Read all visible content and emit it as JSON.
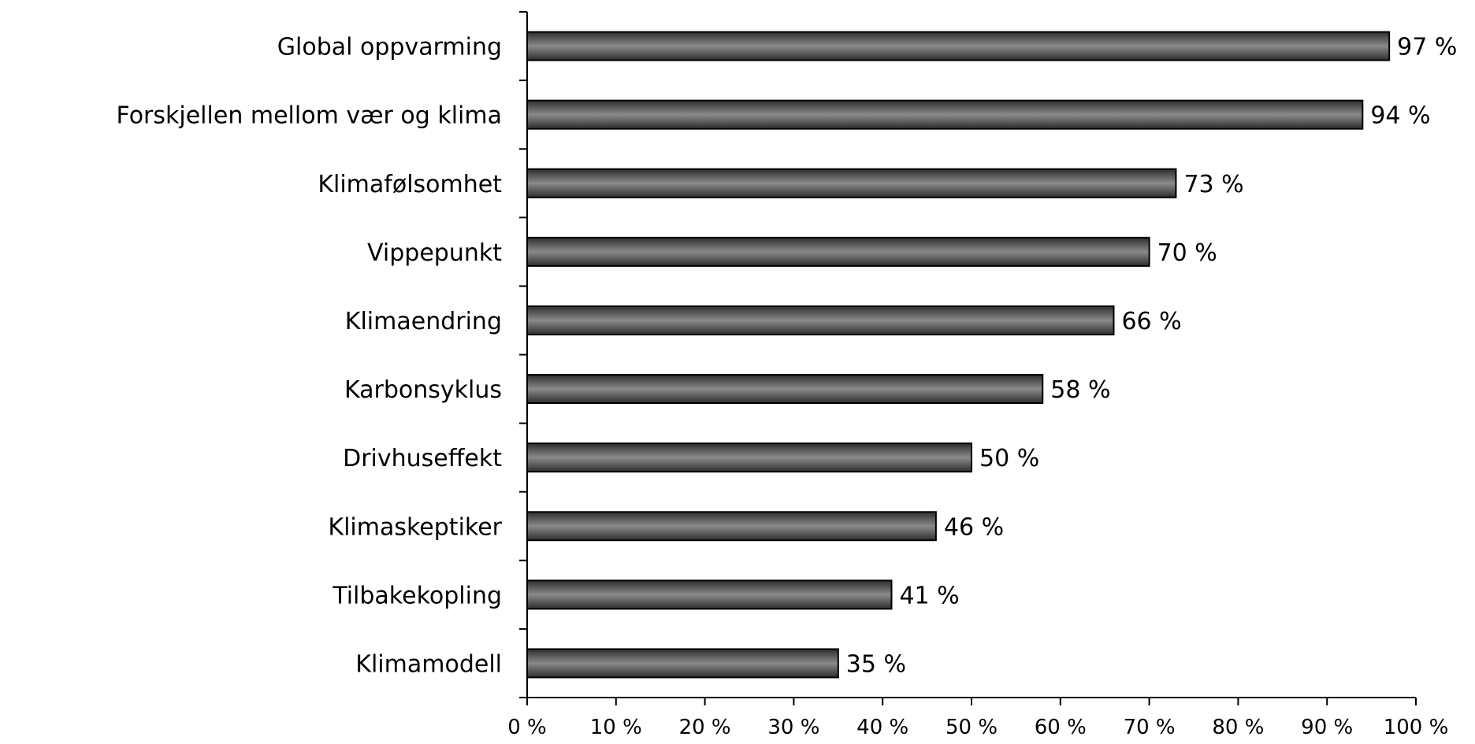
{
  "chart_data": {
    "type": "bar",
    "orientation": "horizontal",
    "title": "",
    "xlabel": "",
    "ylabel": "",
    "categories": [
      "Global oppvarming",
      "Forskjellen mellom vær og klima",
      "Klimafølsomhet",
      "Vippepunkt",
      "Klimaendring",
      "Karbonsyklus",
      "Drivhuseffekt",
      "Klimaskeptiker",
      "Tilbakekopling",
      "Klimamodell"
    ],
    "values": [
      97,
      94,
      73,
      70,
      66,
      58,
      50,
      46,
      41,
      35
    ],
    "value_labels": [
      "97 %",
      "94 %",
      "73 %",
      "70 %",
      "66 %",
      "58 %",
      "50 %",
      "46 %",
      "41 %",
      "35 %"
    ],
    "xlim": [
      0,
      100
    ],
    "x_ticks": [
      0,
      10,
      20,
      30,
      40,
      50,
      60,
      70,
      80,
      90,
      100
    ],
    "x_tick_labels": [
      "0 %",
      "10 %",
      "20 %",
      "30 %",
      "40 %",
      "50 %",
      "60 %",
      "70 %",
      "80 %",
      "90 %",
      "100 %"
    ],
    "grid": false,
    "legend": "none",
    "bar_color": "#4a4a4a",
    "bar_highlight_color": "#8a8a8a",
    "bar_border_color": "#000000"
  }
}
